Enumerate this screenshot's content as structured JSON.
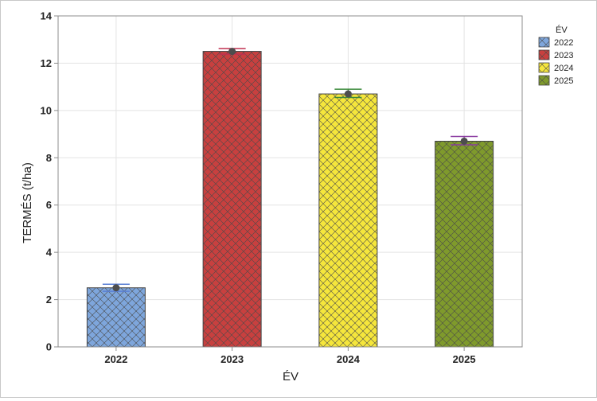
{
  "chart_data": {
    "type": "bar",
    "title": "",
    "xlabel": "ÉV",
    "ylabel": "TERMÉS (t/ha)",
    "categories": [
      "2022",
      "2023",
      "2024",
      "2025"
    ],
    "values": [
      2.5,
      12.5,
      10.7,
      8.7
    ],
    "error_low": [
      2.35,
      12.38,
      10.55,
      8.55
    ],
    "error_high": [
      2.65,
      12.62,
      10.9,
      8.9
    ],
    "ylim": [
      0,
      14
    ],
    "yticks": [
      "0",
      "2",
      "4",
      "6",
      "8",
      "10",
      "12",
      "14"
    ],
    "grid": true,
    "legend": {
      "title": "ÉV",
      "position": "top-right",
      "entries": [
        "2022",
        "2023",
        "2024",
        "2025"
      ]
    },
    "colors": [
      "#7ea6dc",
      "#c8403f",
      "#f5e63c",
      "#7f9a2c"
    ],
    "errorbar_colors": [
      "#5a7fd4",
      "#c03050",
      "#3a8a3a",
      "#8a3aa0"
    ],
    "pattern": "crosshatch"
  }
}
